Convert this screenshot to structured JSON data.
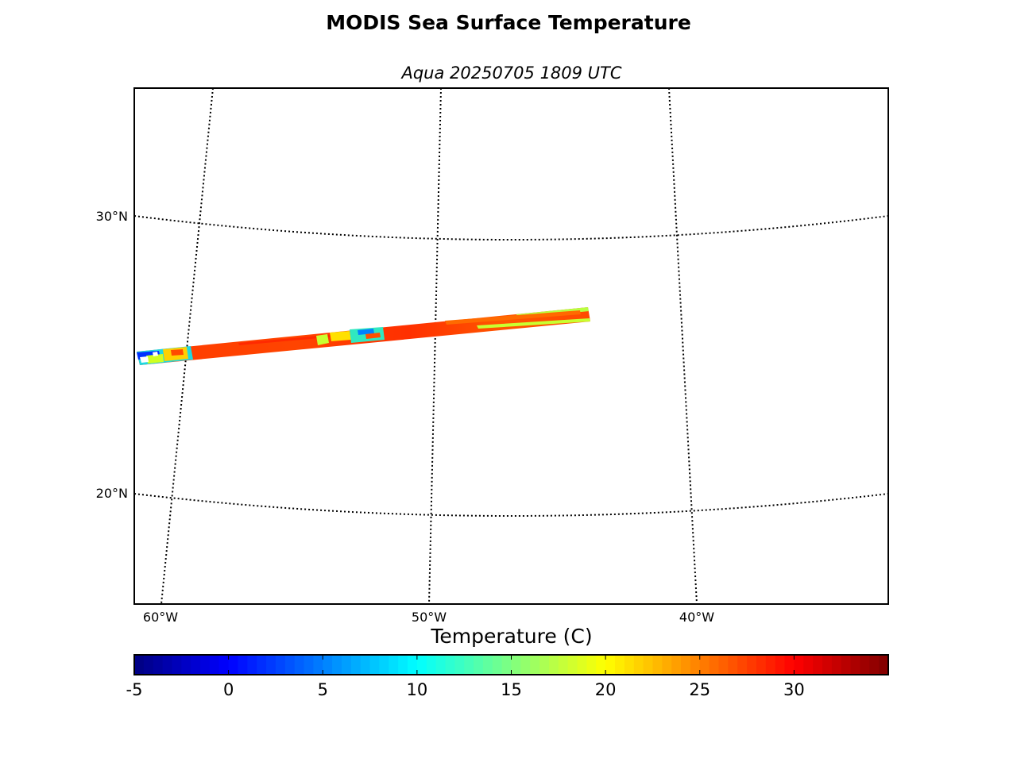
{
  "title": "MODIS Sea Surface Temperature",
  "subtitle": "Aqua 20250705 1809 UTC",
  "map": {
    "lat_labels": [
      "30°N",
      "20°N"
    ],
    "lon_labels": [
      "60°W",
      "50°W",
      "40°W"
    ],
    "gridlines": "dotted",
    "swath_colors": [
      "#ff4a00",
      "#ff5a00",
      "#ff3800",
      "#ff6a00",
      "#c8ff30",
      "#20e0d0",
      "#0040ff"
    ]
  },
  "colorbar": {
    "label": "Temperature (C)",
    "min": -5,
    "max": 35,
    "ticks": [
      "-5",
      "0",
      "5",
      "10",
      "15",
      "20",
      "25",
      "30"
    ],
    "colormap": "jet"
  }
}
